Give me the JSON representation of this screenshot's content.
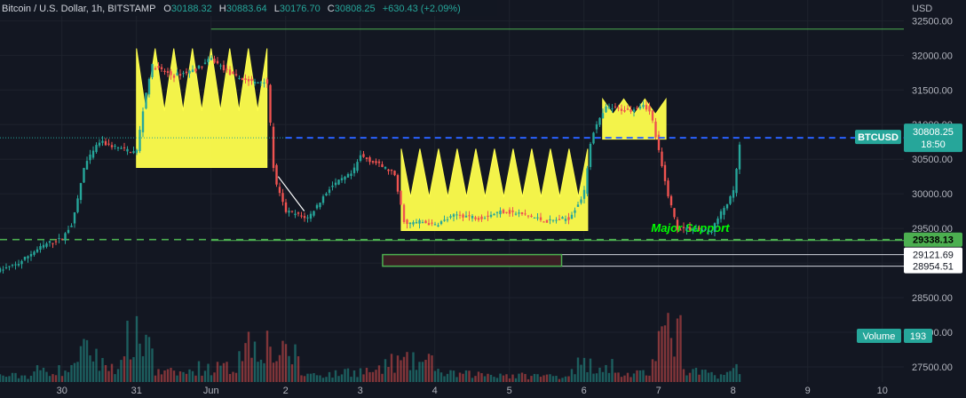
{
  "header": {
    "symbol": "Bitcoin / U.S. Dollar, 1h, BITSTAMP",
    "o_label": "O",
    "o_value": "30188.32",
    "h_label": "H",
    "h_value": "30883.64",
    "l_label": "L",
    "l_value": "30176.70",
    "c_label": "C",
    "c_value": "30808.25",
    "change": "+630.43 (+2.09%)"
  },
  "axis": {
    "currency": "USD"
  },
  "colors": {
    "background": "#131722",
    "up": "#26a69a",
    "down": "#ef5350",
    "highlight": "#ffff4d",
    "support": "#4caf50",
    "price_line": "#2962ff",
    "major_support_text": "#00ff00",
    "axis_text": "#b2b5be"
  },
  "chart_data": {
    "type": "candlestick",
    "title": "Bitcoin / U.S. Dollar, 1h, BITSTAMP",
    "ylim": [
      27050,
      32800
    ],
    "yticks": [
      27500,
      28000,
      28500,
      29000,
      29500,
      30000,
      30500,
      31000,
      31500,
      32000,
      32500
    ],
    "ytick_labels": [
      "27500.00",
      "28000.00",
      "28500.00",
      "29000.00",
      "29500.00",
      "30000.00",
      "30500.00",
      "31000.00",
      "31500.00",
      "32000.00",
      "32500.00"
    ],
    "xticks": [
      {
        "label": "30",
        "day": 30
      },
      {
        "label": "31",
        "day": 31
      },
      {
        "label": "Jun",
        "day": 32
      },
      {
        "label": "2",
        "day": 33
      },
      {
        "label": "3",
        "day": 34
      },
      {
        "label": "4",
        "day": 35
      },
      {
        "label": "5",
        "day": 36
      },
      {
        "label": "6",
        "day": 37
      },
      {
        "label": "7",
        "day": 38
      },
      {
        "label": "8",
        "day": 39
      },
      {
        "label": "9",
        "day": 40
      },
      {
        "label": "10",
        "day": 41
      }
    ],
    "price_path": [
      [
        29.17,
        28900
      ],
      [
        29.4,
        28980
      ],
      [
        29.6,
        29150
      ],
      [
        29.8,
        29280
      ],
      [
        30.0,
        29350
      ],
      [
        30.15,
        29600
      ],
      [
        30.3,
        30400
      ],
      [
        30.5,
        30750
      ],
      [
        30.8,
        30650
      ],
      [
        31.0,
        30600
      ],
      [
        31.1,
        31300
      ],
      [
        31.2,
        31850
      ],
      [
        31.5,
        31700
      ],
      [
        31.8,
        31800
      ],
      [
        32.0,
        31950
      ],
      [
        32.3,
        31700
      ],
      [
        32.6,
        31600
      ],
      [
        32.75,
        31650
      ],
      [
        32.85,
        30200
      ],
      [
        33.0,
        29750
      ],
      [
        33.3,
        29650
      ],
      [
        33.6,
        30100
      ],
      [
        33.9,
        30300
      ],
      [
        34.0,
        30550
      ],
      [
        34.2,
        30450
      ],
      [
        34.45,
        30300
      ],
      [
        34.6,
        29550
      ],
      [
        34.8,
        29600
      ],
      [
        35.0,
        29550
      ],
      [
        35.3,
        29700
      ],
      [
        35.6,
        29650
      ],
      [
        35.9,
        29750
      ],
      [
        36.2,
        29700
      ],
      [
        36.5,
        29600
      ],
      [
        36.8,
        29650
      ],
      [
        37.0,
        30000
      ],
      [
        37.1,
        30850
      ],
      [
        37.3,
        31250
      ],
      [
        37.6,
        31200
      ],
      [
        37.8,
        31300
      ],
      [
        37.9,
        31150
      ],
      [
        38.1,
        30100
      ],
      [
        38.25,
        29500
      ],
      [
        38.5,
        29500
      ],
      [
        38.7,
        29450
      ],
      [
        38.85,
        29750
      ],
      [
        39.0,
        30000
      ],
      [
        39.1,
        30800
      ]
    ],
    "volume_scale": 65,
    "volume_profile": [
      [
        29.2,
        8
      ],
      [
        30.0,
        15
      ],
      [
        30.3,
        38
      ],
      [
        30.7,
        22
      ],
      [
        31.0,
        55
      ],
      [
        31.5,
        12
      ],
      [
        32.0,
        18
      ],
      [
        32.7,
        50
      ],
      [
        32.9,
        35
      ],
      [
        33.5,
        10
      ],
      [
        34.0,
        14
      ],
      [
        34.6,
        25
      ],
      [
        35.5,
        10
      ],
      [
        36.5,
        8
      ],
      [
        37.1,
        22
      ],
      [
        37.7,
        10
      ],
      [
        38.1,
        60
      ],
      [
        38.5,
        12
      ],
      [
        38.9,
        10
      ],
      [
        39.1,
        20
      ]
    ],
    "series": [
      {
        "name": "BTCUSD",
        "last": 30808.25,
        "countdown": "18:50"
      },
      {
        "name": "Volume",
        "last": 193
      }
    ],
    "levels": [
      {
        "price": 29338.13,
        "label": "29338.13",
        "style": "dashed-green"
      },
      {
        "price": 29121.69,
        "label": "29121.69",
        "style": "solid-white"
      },
      {
        "price": 28954.51,
        "label": "28954.51",
        "style": "solid-white"
      },
      {
        "price": 32380,
        "style": "solid-green"
      }
    ],
    "annotations": [
      {
        "text": "Major Support",
        "price": 29450,
        "day": 38.95
      },
      {
        "kind": "zigzag-box",
        "day_start": 31.0,
        "day_end": 32.75,
        "price_top": 32100,
        "price_low": 31200,
        "price_bottom": 30380
      },
      {
        "kind": "zigzag-box",
        "day_start": 34.55,
        "day_end": 37.05,
        "price_top": 30650,
        "price_low": 29950,
        "price_bottom": 29470
      },
      {
        "kind": "zigzag-box",
        "day_start": 37.25,
        "day_end": 38.1,
        "price_top": 31370,
        "price_low": 31150,
        "price_bottom": 30790
      },
      {
        "kind": "range-box",
        "day_start": 34.3,
        "day_end": 36.7,
        "price_top": 29121.69,
        "price_bottom": 28954.51
      },
      {
        "kind": "trendline",
        "day_start": 32.9,
        "price_start": 30250,
        "day_end": 33.25,
        "price_end": 29750
      }
    ]
  }
}
